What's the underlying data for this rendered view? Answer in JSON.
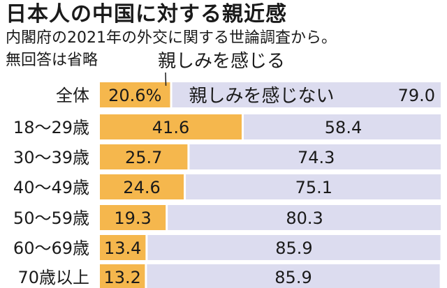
{
  "header": {
    "title": "日本人の中国に対する親近感",
    "subtitle": "内閣府の2021年の外交に関する世論調査から。",
    "note": "無回答は省略"
  },
  "colors": {
    "near": "#f5b74d",
    "far": "#dcdcef"
  },
  "chart_data": {
    "type": "bar",
    "stacked": true,
    "orientation": "horizontal",
    "title": "日本人の中国に対する親近感",
    "categories": [
      "全体",
      "18〜29歳",
      "30〜39歳",
      "40〜49歳",
      "50〜59歳",
      "60〜69歳",
      "70歳以上"
    ],
    "series": [
      {
        "name": "親しみを感じる",
        "values": [
          20.6,
          41.6,
          25.7,
          24.6,
          19.3,
          13.4,
          13.2
        ]
      },
      {
        "name": "親しみを感じない",
        "values": [
          79.0,
          58.4,
          74.3,
          75.1,
          80.3,
          85.9,
          85.9
        ]
      }
    ],
    "value_labels_first_row": [
      "20.6%",
      "79.0"
    ],
    "xlim": [
      0,
      100
    ],
    "grid": false,
    "legend": "inline"
  }
}
